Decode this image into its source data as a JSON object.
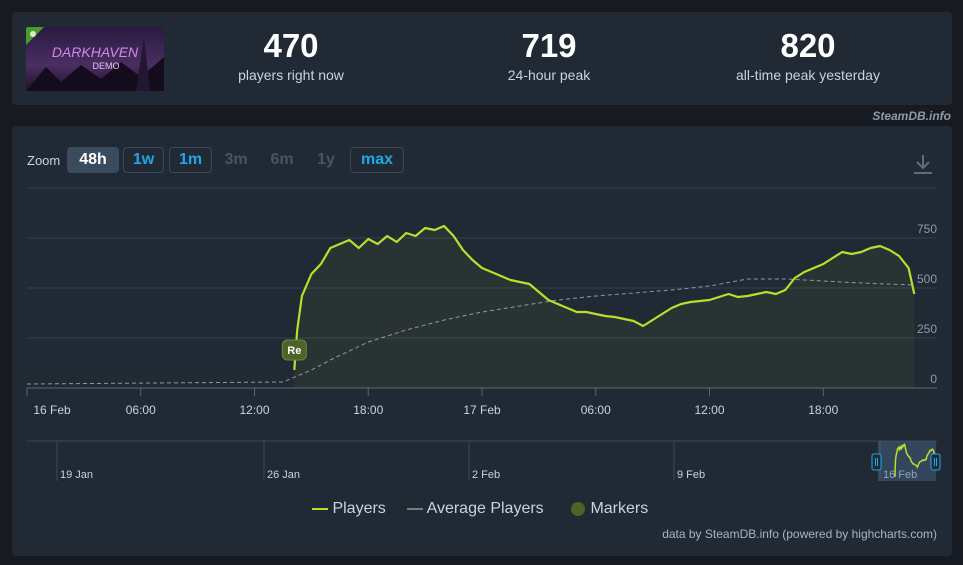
{
  "game": {
    "logo_title": "DARKHAVEN",
    "logo_subtitle": "DEMO"
  },
  "stats": [
    {
      "value": "470",
      "label": "players right now"
    },
    {
      "value": "719",
      "label": "24-hour peak"
    },
    {
      "value": "820",
      "label": "all-time peak yesterday"
    }
  ],
  "watermark": "SteamDB.info",
  "zoom": {
    "label": "Zoom",
    "buttons": [
      {
        "label": "48h",
        "state": "active"
      },
      {
        "label": "1w",
        "state": "enabled"
      },
      {
        "label": "1m",
        "state": "enabled"
      },
      {
        "label": "3m",
        "state": "disabled"
      },
      {
        "label": "6m",
        "state": "disabled"
      },
      {
        "label": "1y",
        "state": "disabled"
      },
      {
        "label": "max",
        "state": "enabled"
      }
    ]
  },
  "chart_data": {
    "type": "line",
    "y_ticks": [
      "750",
      "500",
      "250",
      "0"
    ],
    "x_ticks": [
      "16 Feb",
      "06:00",
      "12:00",
      "18:00",
      "17 Feb",
      "06:00",
      "12:00",
      "18:00"
    ],
    "ylim": [
      0,
      1000
    ],
    "grid": true,
    "legend_position": "bottom",
    "series": [
      {
        "name": "Players",
        "color": "#b8e02a",
        "points": [
          [
            14.1,
            90
          ],
          [
            14.25,
            290
          ],
          [
            14.5,
            460
          ],
          [
            15.0,
            570
          ],
          [
            15.5,
            620
          ],
          [
            16.0,
            700
          ],
          [
            16.5,
            720
          ],
          [
            17.0,
            740
          ],
          [
            17.5,
            700
          ],
          [
            18.0,
            745
          ],
          [
            18.5,
            720
          ],
          [
            19.0,
            760
          ],
          [
            19.5,
            730
          ],
          [
            20.0,
            775
          ],
          [
            20.5,
            760
          ],
          [
            21.0,
            800
          ],
          [
            21.5,
            790
          ],
          [
            22.0,
            810
          ],
          [
            22.5,
            760
          ],
          [
            23.0,
            690
          ],
          [
            23.5,
            640
          ],
          [
            24.0,
            600
          ],
          [
            24.5,
            580
          ],
          [
            25.0,
            560
          ],
          [
            25.5,
            540
          ],
          [
            26.0,
            530
          ],
          [
            26.5,
            520
          ],
          [
            27.0,
            480
          ],
          [
            27.5,
            440
          ],
          [
            28.0,
            420
          ],
          [
            28.5,
            400
          ],
          [
            29.0,
            380
          ],
          [
            29.5,
            380
          ],
          [
            30.0,
            370
          ],
          [
            30.5,
            360
          ],
          [
            31.0,
            355
          ],
          [
            31.5,
            345
          ],
          [
            32.0,
            335
          ],
          [
            32.5,
            310
          ],
          [
            33.0,
            340
          ],
          [
            33.5,
            370
          ],
          [
            34.0,
            400
          ],
          [
            34.5,
            420
          ],
          [
            35.0,
            430
          ],
          [
            35.5,
            435
          ],
          [
            36.0,
            440
          ],
          [
            36.5,
            455
          ],
          [
            37.0,
            470
          ],
          [
            37.5,
            455
          ],
          [
            38.0,
            460
          ],
          [
            38.5,
            470
          ],
          [
            39.0,
            480
          ],
          [
            39.5,
            470
          ],
          [
            40.0,
            490
          ],
          [
            40.5,
            550
          ],
          [
            41.0,
            580
          ],
          [
            41.5,
            600
          ],
          [
            42.0,
            620
          ],
          [
            42.5,
            650
          ],
          [
            43.0,
            680
          ],
          [
            43.5,
            670
          ],
          [
            44.0,
            680
          ],
          [
            44.5,
            700
          ],
          [
            45.0,
            710
          ],
          [
            45.5,
            690
          ],
          [
            46.0,
            660
          ],
          [
            46.5,
            600
          ],
          [
            46.8,
            470
          ]
        ]
      },
      {
        "name": "Average Players",
        "color": "#8f98a0",
        "points": [
          [
            0,
            20
          ],
          [
            13.5,
            30
          ],
          [
            15.0,
            90
          ],
          [
            16.0,
            140
          ],
          [
            18.0,
            230
          ],
          [
            20.0,
            290
          ],
          [
            22.0,
            340
          ],
          [
            24.0,
            380
          ],
          [
            26.0,
            410
          ],
          [
            28.0,
            440
          ],
          [
            30.0,
            460
          ],
          [
            32.0,
            475
          ],
          [
            34.0,
            490
          ],
          [
            36.0,
            510
          ],
          [
            38.0,
            545
          ],
          [
            40.0,
            545
          ],
          [
            42.0,
            535
          ],
          [
            44.0,
            525
          ],
          [
            46.8,
            515
          ]
        ]
      }
    ],
    "marker": {
      "label": "Re",
      "x": 14.1,
      "y": 190
    },
    "navigator": {
      "labels": [
        "19 Jan",
        "26 Jan",
        "2 Feb",
        "9 Feb",
        "16 Feb"
      ]
    },
    "legend": [
      "Players",
      "Average Players",
      "Markers"
    ]
  },
  "credit": "data by SteamDB.info (powered by highcharts.com)"
}
